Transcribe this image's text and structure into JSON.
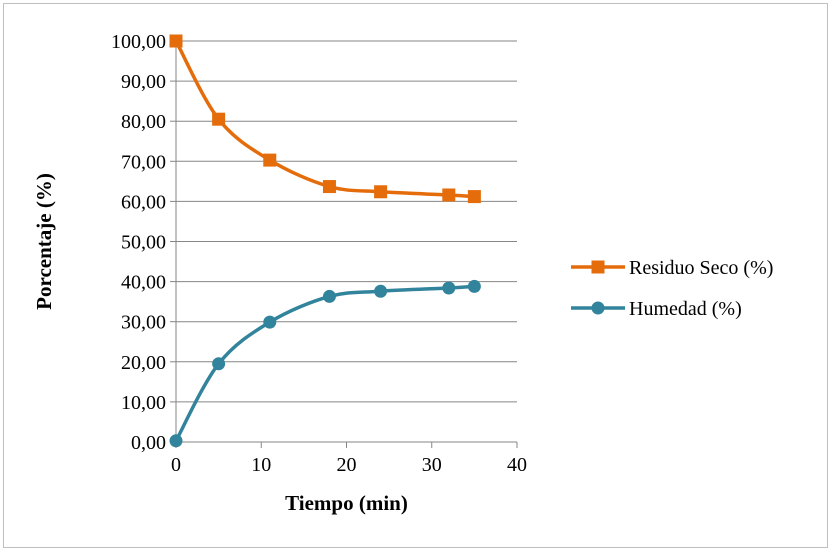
{
  "chart_data": {
    "type": "line",
    "smooth": true,
    "title": "",
    "xlabel": "Tiempo (min)",
    "ylabel": "Porcentaje (%)",
    "xlim": [
      0,
      40
    ],
    "ylim": [
      0,
      100
    ],
    "x_ticks": [
      0,
      10,
      20,
      30,
      40
    ],
    "x_tick_labels": [
      "0",
      "10",
      "20",
      "30",
      "40"
    ],
    "y_ticks": [
      0,
      10,
      20,
      30,
      40,
      50,
      60,
      70,
      80,
      90,
      100
    ],
    "y_tick_labels": [
      "0,00",
      "10,00",
      "20,00",
      "30,00",
      "40,00",
      "50,00",
      "60,00",
      "70,00",
      "80,00",
      "90,00",
      "100,00"
    ],
    "grid": "horizontal",
    "legend_position": "right",
    "series": [
      {
        "name": "Residuo Seco (%)",
        "color": "#e46c0a",
        "marker": "square",
        "x": [
          0,
          5,
          11,
          18,
          24,
          32,
          35
        ],
        "y": [
          100,
          80.5,
          70.3,
          63.7,
          62.4,
          61.6,
          61.2
        ]
      },
      {
        "name": "Humedad (%)",
        "color": "#31849b",
        "marker": "circle",
        "x": [
          0,
          5,
          11,
          18,
          24,
          32,
          35
        ],
        "y": [
          0.3,
          19.5,
          29.9,
          36.3,
          37.6,
          38.4,
          38.8
        ]
      }
    ]
  }
}
